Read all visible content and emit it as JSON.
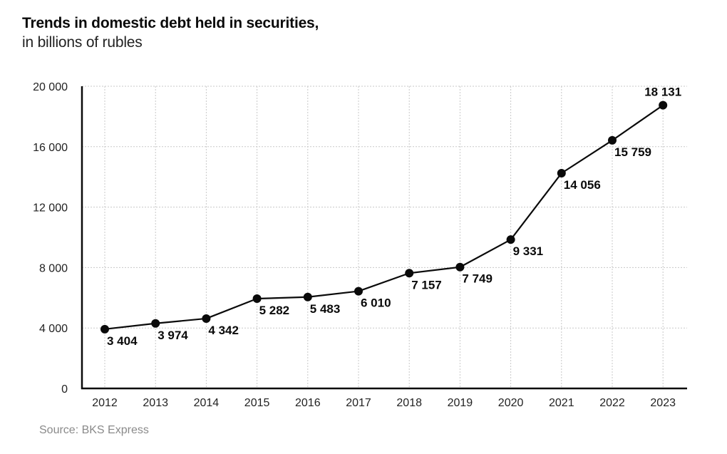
{
  "header": {
    "title": "Trends in domestic debt held in securities,",
    "subtitle": "in billions of rubles"
  },
  "footer": {
    "source": "Source: BKS Express"
  },
  "colors": {
    "line": "#0a0a0a",
    "grid": "#c8c8c8",
    "axis": "#0a0a0a",
    "source_text": "#8a8a8a"
  },
  "chart_data": {
    "type": "line",
    "title": "Trends in domestic debt held in securities,",
    "subtitle": "in billions of rubles",
    "xlabel": "",
    "ylabel": "",
    "categories": [
      "2012",
      "2013",
      "2014",
      "2015",
      "2016",
      "2017",
      "2018",
      "2019",
      "2020",
      "2021",
      "2022",
      "2023"
    ],
    "series": [
      {
        "name": "Domestic debt held in securities",
        "values": [
          3404,
          3974,
          4342,
          5282,
          5483,
          6010,
          7157,
          7749,
          9331,
          14056,
          15759,
          18131
        ],
        "labels": [
          "3 404",
          "3 974",
          "4 342",
          "5 282",
          "5 483",
          "6 010",
          "7 157",
          "7 749",
          "9 331",
          "14 056",
          "15 759",
          "18 131"
        ]
      }
    ],
    "yticks": [
      "0",
      "4 000",
      "8 000",
      "12 000",
      "16 000",
      "20 000"
    ],
    "ylim": [
      0,
      20000
    ],
    "grid": true,
    "legend": "none",
    "source": "Source: BKS Express"
  }
}
